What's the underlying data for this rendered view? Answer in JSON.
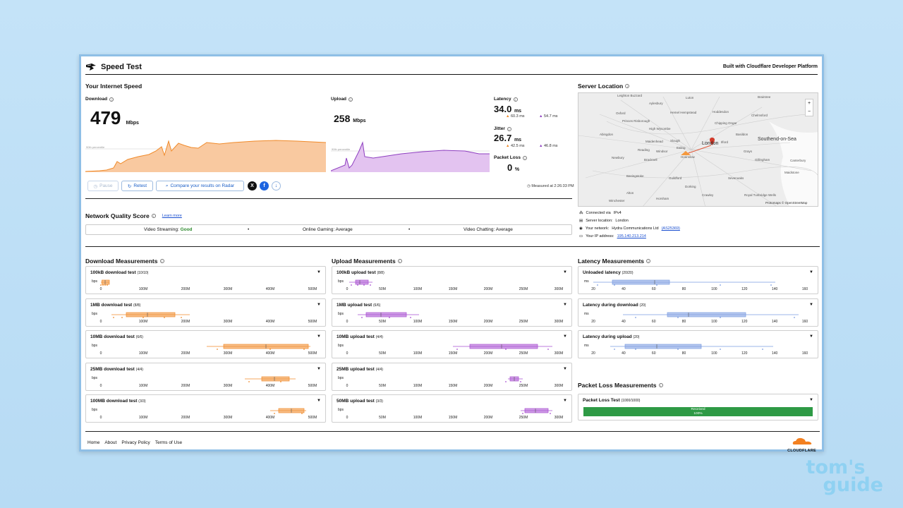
{
  "app": {
    "title": "Speed Test",
    "built_with": "Built with Cloudflare Developer Platform"
  },
  "speed": {
    "section_title": "Your Internet Speed",
    "download": {
      "label": "Download",
      "value": "479",
      "unit": "Mbps",
      "percentile_label": "90th percentile"
    },
    "upload": {
      "label": "Upload",
      "value": "258",
      "unit": "Mbps",
      "percentile_label": "90th percentile"
    },
    "latency": {
      "label": "Latency",
      "value": "34.0",
      "unit": "ms",
      "down": "60.3 ms",
      "up": "54.7 ms"
    },
    "jitter": {
      "label": "Jitter",
      "value": "26.7",
      "unit": "ms",
      "down": "42.5 ms",
      "up": "46.8 ms"
    },
    "packet_loss": {
      "label": "Packet Loss",
      "value": "0",
      "unit": "%"
    },
    "measured_at": "Measured at 2:26:33 PM",
    "colors": {
      "download": "#f5993d",
      "upload": "#a84fd1",
      "latency_box": "#7a9be0"
    }
  },
  "controls": {
    "pause": "Pause",
    "retest": "Retest",
    "compare": "Compare your results on Radar"
  },
  "network_quality": {
    "title": "Network Quality Score",
    "learn_more": "Learn more",
    "streaming_label": "Video Streaming:",
    "streaming_value": "Good",
    "gaming_label": "Online Gaming:",
    "gaming_value": "Average",
    "chatting_label": "Video Chatting:",
    "chatting_value": "Average"
  },
  "server": {
    "title": "Server Location",
    "map_labels": [
      "Leighton Buzzard",
      "Luton",
      "Braintree",
      "Aylesbury",
      "Hemel Hempstead",
      "Hoddesdon",
      "Chelmsford",
      "Oxford",
      "Princes Risborough",
      "High Wycombe",
      "Chipping Ongar",
      "Basildon",
      "Southend-on-Sea",
      "Abingdon",
      "Maidenhead",
      "Slough",
      "Ilford",
      "Reading",
      "Windsor",
      "Ealing",
      "London",
      "Grays",
      "Newbury",
      "Hounslow",
      "Bracknell",
      "Gillingham",
      "Maidstone",
      "Basingstoke",
      "Guildford",
      "Sevenoaks",
      "Dorking",
      "Crawley",
      "Royal Tunbridge Wells",
      "Alton",
      "Horsham",
      "Winchester",
      "Canterbury"
    ],
    "map_credit": "Protomaps © OpenStreetMap",
    "connected_via_label": "Connected via",
    "connected_via": "IPv4",
    "server_location_label": "Server location:",
    "server_location": "London",
    "network_label": "Your network:",
    "network": "Hydra Communications Ltd",
    "asn": "(AS25369)",
    "ip_label": "Your IP address:",
    "ip": "195.140.213.214"
  },
  "download_measurements": {
    "title": "Download Measurements",
    "unit_label": "bps",
    "ticks": [
      "0",
      "100M",
      "200M",
      "300M",
      "400M",
      "500M"
    ],
    "cards": [
      {
        "name": "100kB download test",
        "count": "(10/10)"
      },
      {
        "name": "1MB download test",
        "count": "(8/8)"
      },
      {
        "name": "10MB download test",
        "count": "(6/6)"
      },
      {
        "name": "25MB download test",
        "count": "(4/4)"
      },
      {
        "name": "100MB download test",
        "count": "(3/3)"
      }
    ]
  },
  "upload_measurements": {
    "title": "Upload Measurements",
    "unit_label": "bps",
    "ticks": [
      "0",
      "50M",
      "100M",
      "150M",
      "200M",
      "250M",
      "300M"
    ],
    "cards": [
      {
        "name": "100kB upload test",
        "count": "(8/8)"
      },
      {
        "name": "1MB upload test",
        "count": "(6/6)"
      },
      {
        "name": "10MB upload test",
        "count": "(4/4)"
      },
      {
        "name": "25MB upload test",
        "count": "(4/4)"
      },
      {
        "name": "50MB upload test",
        "count": "(3/3)"
      }
    ]
  },
  "latency_measurements": {
    "title": "Latency Measurements",
    "unit_label": "ms",
    "ticks": [
      "20",
      "40",
      "60",
      "80",
      "100",
      "120",
      "140",
      "160"
    ],
    "cards": [
      {
        "name": "Unloaded latency",
        "count": "(20/20)"
      },
      {
        "name": "Latency during download",
        "count": "(20)"
      },
      {
        "name": "Latency during upload",
        "count": "(20)"
      }
    ]
  },
  "packet_loss_measurements": {
    "title": "Packet Loss Measurements",
    "card": {
      "name": "Packet Loss Test",
      "count": "(1000/1000)"
    },
    "bar_label": "Received",
    "bar_pct": "100%"
  },
  "footer": {
    "links": [
      "Home",
      "About",
      "Privacy Policy",
      "Terms of Use"
    ],
    "brand": "CLOUDFLARE"
  },
  "watermark": {
    "line1": "tom's",
    "line2": "guide"
  }
}
